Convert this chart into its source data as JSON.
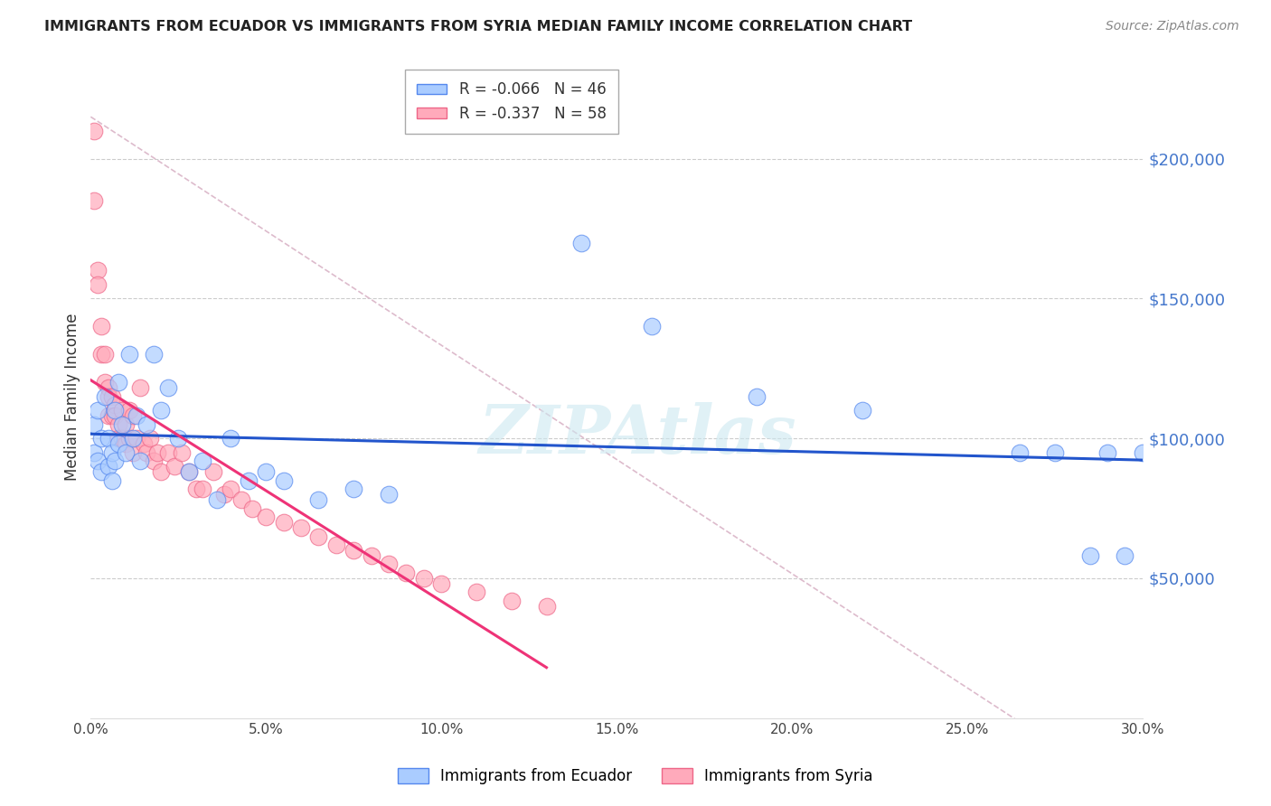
{
  "title": "IMMIGRANTS FROM ECUADOR VS IMMIGRANTS FROM SYRIA MEDIAN FAMILY INCOME CORRELATION CHART",
  "source": "Source: ZipAtlas.com",
  "ylabel": "Median Family Income",
  "y_tick_labels": [
    "$50,000",
    "$100,000",
    "$150,000",
    "$200,000"
  ],
  "y_tick_values": [
    50000,
    100000,
    150000,
    200000
  ],
  "y_min": 0,
  "y_max": 230000,
  "x_min": 0.0,
  "x_max": 0.3,
  "legend_r1": "R = -0.066",
  "legend_n1": "N = 46",
  "legend_r2": "R = -0.337",
  "legend_n2": "N = 58",
  "ecuador_color": "#aaccff",
  "syria_color": "#ffaabb",
  "ecuador_edge": "#5588ee",
  "syria_edge": "#ee6688",
  "regression_blue": "#2255cc",
  "regression_pink": "#ee3377",
  "diag_color": "#ddbbcc",
  "watermark": "ZIPAtlas",
  "ecuador_x": [
    0.001,
    0.001,
    0.002,
    0.002,
    0.003,
    0.003,
    0.004,
    0.005,
    0.005,
    0.006,
    0.006,
    0.007,
    0.007,
    0.008,
    0.008,
    0.009,
    0.01,
    0.011,
    0.012,
    0.013,
    0.014,
    0.016,
    0.018,
    0.02,
    0.022,
    0.025,
    0.028,
    0.032,
    0.036,
    0.04,
    0.045,
    0.05,
    0.055,
    0.065,
    0.075,
    0.085,
    0.14,
    0.16,
    0.19,
    0.22,
    0.265,
    0.275,
    0.285,
    0.29,
    0.295,
    0.3
  ],
  "ecuador_y": [
    105000,
    95000,
    110000,
    92000,
    100000,
    88000,
    115000,
    100000,
    90000,
    95000,
    85000,
    110000,
    92000,
    120000,
    98000,
    105000,
    95000,
    130000,
    100000,
    108000,
    92000,
    105000,
    130000,
    110000,
    118000,
    100000,
    88000,
    92000,
    78000,
    100000,
    85000,
    88000,
    85000,
    78000,
    82000,
    80000,
    170000,
    140000,
    115000,
    110000,
    95000,
    95000,
    58000,
    95000,
    58000,
    95000
  ],
  "syria_x": [
    0.001,
    0.001,
    0.002,
    0.002,
    0.003,
    0.003,
    0.004,
    0.004,
    0.005,
    0.005,
    0.005,
    0.006,
    0.006,
    0.007,
    0.007,
    0.008,
    0.008,
    0.009,
    0.009,
    0.01,
    0.01,
    0.011,
    0.011,
    0.012,
    0.012,
    0.013,
    0.014,
    0.015,
    0.016,
    0.017,
    0.018,
    0.019,
    0.02,
    0.022,
    0.024,
    0.026,
    0.028,
    0.03,
    0.032,
    0.035,
    0.038,
    0.04,
    0.043,
    0.046,
    0.05,
    0.055,
    0.06,
    0.065,
    0.07,
    0.075,
    0.08,
    0.085,
    0.09,
    0.095,
    0.1,
    0.11,
    0.12,
    0.13
  ],
  "syria_y": [
    210000,
    185000,
    160000,
    155000,
    140000,
    130000,
    130000,
    120000,
    118000,
    115000,
    108000,
    115000,
    108000,
    112000,
    108000,
    105000,
    100000,
    110000,
    100000,
    105000,
    98000,
    110000,
    100000,
    108000,
    95000,
    100000,
    118000,
    98000,
    95000,
    100000,
    92000,
    95000,
    88000,
    95000,
    90000,
    95000,
    88000,
    82000,
    82000,
    88000,
    80000,
    82000,
    78000,
    75000,
    72000,
    70000,
    68000,
    65000,
    62000,
    60000,
    58000,
    55000,
    52000,
    50000,
    48000,
    45000,
    42000,
    40000
  ]
}
